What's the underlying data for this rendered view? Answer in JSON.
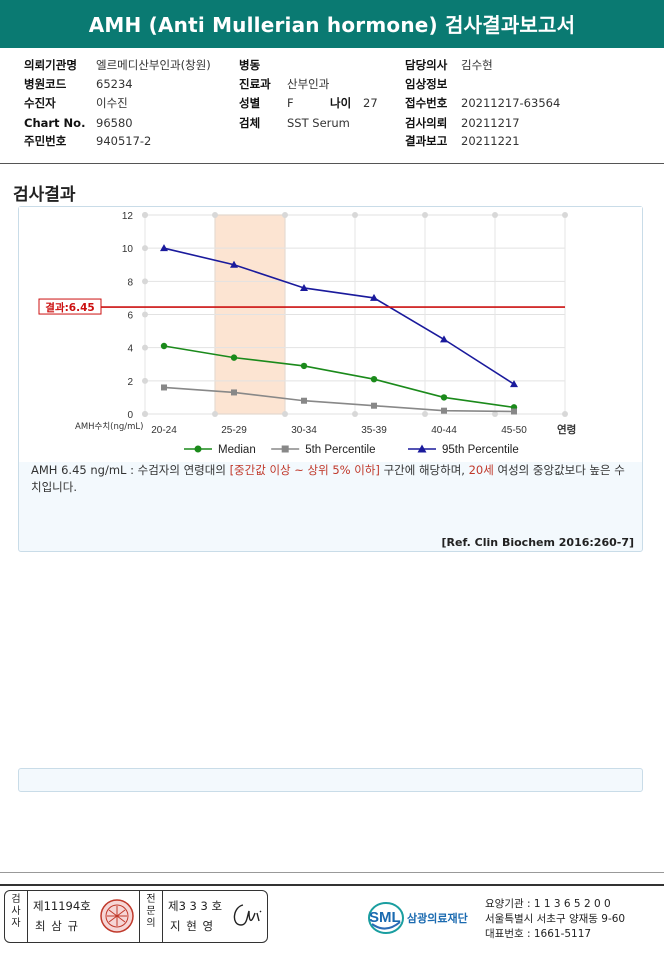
{
  "header": {
    "title": "AMH (Anti Mullerian hormone) 검사결과보고서"
  },
  "info": {
    "hospital_label": "의뢰기관명",
    "hospital": "엘르메디산부인과(창원)",
    "code_label": "병원코드",
    "code": "65234",
    "patient_label": "수진자",
    "patient": "이수진",
    "chart_label": "Chart No.",
    "chart_no": "96580",
    "id_label": "주민번호",
    "id_no": "940517-2",
    "ward_label": "병동",
    "dept_label": "진료과",
    "dept": "산부인과",
    "sex_label": "성별",
    "sex": "F",
    "age_label": "나이",
    "age": "27",
    "specimen_label": "검체",
    "specimen": "SST Serum",
    "doctor_label": "담당의사",
    "doctor": "김수현",
    "clinical_label": "임상정보",
    "accession_label": "접수번호",
    "accession": "20211217-63564",
    "request_label": "검사의뢰",
    "request": "20211217",
    "report_label": "결과보고",
    "report": "20211221"
  },
  "section": {
    "title": "검사결과"
  },
  "chart_data": {
    "type": "line",
    "categories": [
      "20-24",
      "25-29",
      "30-34",
      "35-39",
      "40-44",
      "45-50"
    ],
    "xlabel": "연령",
    "ylabel": "AMH수치(ng/mL)",
    "ylim": [
      0,
      12
    ],
    "yticks": [
      0,
      2,
      4,
      6,
      8,
      10,
      12
    ],
    "grid": true,
    "legend_position": "bottom",
    "series": [
      {
        "name": "Median",
        "color": "#1b8a1b",
        "marker": "circle",
        "values": [
          4.1,
          3.4,
          2.9,
          2.1,
          1.0,
          0.4
        ]
      },
      {
        "name": "5th Percentile",
        "color": "#888888",
        "marker": "square",
        "values": [
          1.6,
          1.3,
          0.8,
          0.5,
          0.2,
          0.15
        ]
      },
      {
        "name": "95th Percentile",
        "color": "#1a1a9c",
        "marker": "triangle",
        "values": [
          10.0,
          9.0,
          7.6,
          7.0,
          4.5,
          1.8
        ]
      }
    ],
    "highlight_category": "25-29",
    "result_line": {
      "value": 6.45,
      "label": "결과:6.45",
      "color": "#cc1111"
    }
  },
  "interpretation": {
    "part1": "AMH  6.45 ng/mL : 수검자의 연령대의 ",
    "red1": "[중간값 이상 ~ 상위 5% 이하]",
    "part2": " 구간에 해당하며, ",
    "red2": "20세",
    "part3": " 여성의 중앙값보다 높은 수치입니다."
  },
  "reference": "[Ref. Clin Biochem 2016:260-7]",
  "footer": {
    "label1": "검사자",
    "license1": "제11194호",
    "name1": "최 삼 규",
    "label2": "전문의",
    "license2": "제3 3 3 호",
    "name2": "지 현 영",
    "org_abbr": "SML",
    "org_name": "삼광의료재단",
    "inst_code": "요양기관 : 1 1 3 6 5 2 0 0",
    "address": "서울특별시 서초구 양재동 9-60",
    "phone": "대표번호 : 1661-5117"
  }
}
